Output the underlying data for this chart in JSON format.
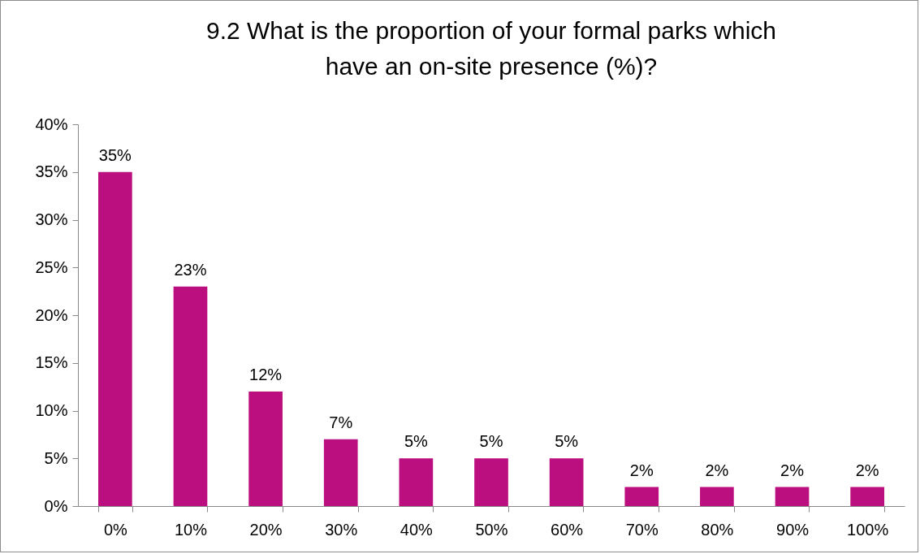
{
  "chart_data": {
    "type": "bar",
    "title": "9.2  What is the proportion of your formal parks which have an on-site presence (%)?",
    "categories": [
      "0%",
      "10%",
      "20%",
      "30%",
      "40%",
      "50%",
      "60%",
      "70%",
      "80%",
      "90%",
      "100%"
    ],
    "values": [
      35,
      23,
      12,
      7,
      5,
      5,
      5,
      2,
      2,
      2,
      2
    ],
    "value_labels": [
      "35%",
      "23%",
      "12%",
      "7%",
      "5%",
      "5%",
      "5%",
      "2%",
      "2%",
      "2%",
      "2%"
    ],
    "color": "#bc0f7f",
    "ylim": [
      0,
      40
    ],
    "yticks": [
      {
        "value": 0,
        "label": "0%"
      },
      {
        "value": 5,
        "label": "5%"
      },
      {
        "value": 10,
        "label": "10%"
      },
      {
        "value": 15,
        "label": "15%"
      },
      {
        "value": 20,
        "label": "20%"
      },
      {
        "value": 25,
        "label": "25%"
      },
      {
        "value": 30,
        "label": "30%"
      },
      {
        "value": 35,
        "label": "35%"
      },
      {
        "value": 40,
        "label": "40%"
      }
    ],
    "grid": false
  }
}
